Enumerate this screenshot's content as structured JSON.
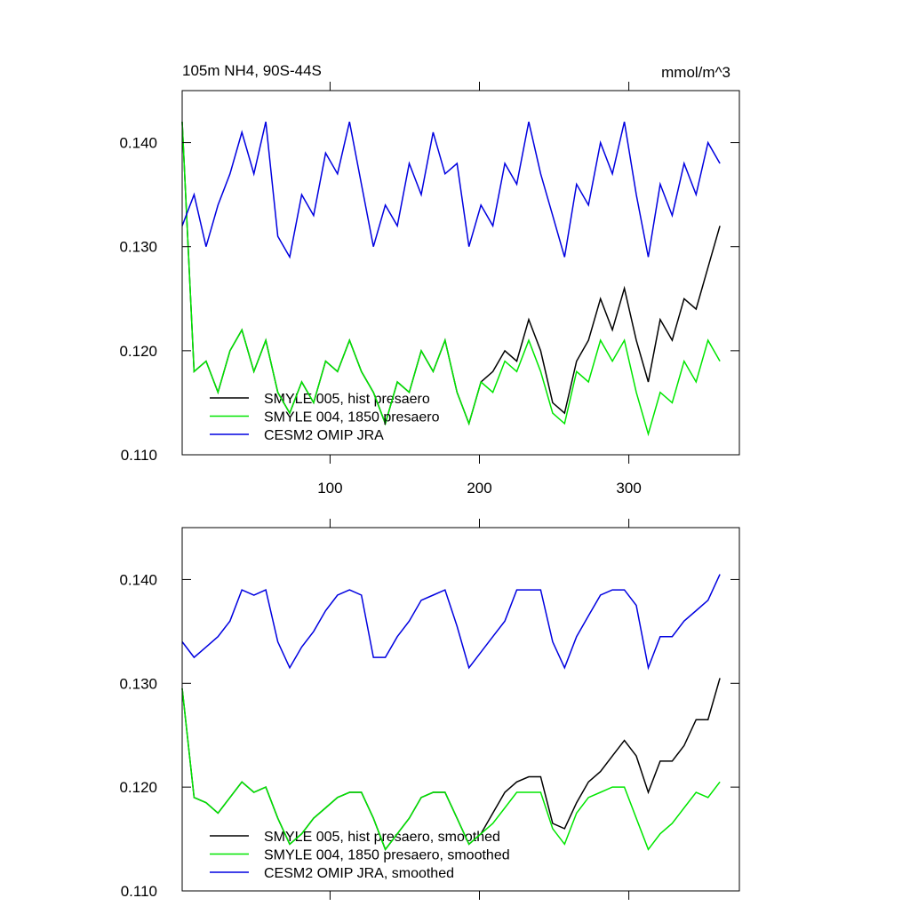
{
  "chart_data": [
    {
      "type": "line",
      "title": "105m NH4, 90S-44S",
      "units": "mmol/m^3",
      "x": [
        1,
        9,
        17,
        25,
        33,
        41,
        49,
        57,
        65,
        73,
        81,
        89,
        97,
        105,
        113,
        121,
        129,
        137,
        145,
        153,
        161,
        169,
        177,
        185,
        193,
        201,
        209,
        217,
        225,
        233,
        241,
        249,
        257,
        265,
        273,
        281,
        289,
        297,
        305,
        313,
        321,
        329,
        337,
        345,
        353,
        361
      ],
      "xlim": [
        1,
        374
      ],
      "xticks": [
        100,
        200,
        300
      ],
      "ylim": [
        0.11,
        0.145
      ],
      "yticks": [
        {
          "value": 0.11,
          "label": "0.110"
        },
        {
          "value": 0.12,
          "label": "0.120"
        },
        {
          "value": 0.13,
          "label": "0.130"
        },
        {
          "value": 0.14,
          "label": "0.140"
        }
      ],
      "series": [
        {
          "name": "SMYLE 005, hist presaero",
          "color": "#000000",
          "values": [
            0.142,
            0.118,
            0.119,
            0.116,
            0.12,
            0.122,
            0.118,
            0.121,
            0.116,
            0.114,
            0.117,
            0.115,
            0.119,
            0.118,
            0.121,
            0.118,
            0.116,
            0.113,
            0.117,
            0.116,
            0.12,
            0.118,
            0.121,
            0.116,
            0.113,
            0.117,
            0.118,
            0.12,
            0.119,
            0.123,
            0.12,
            0.115,
            0.114,
            0.119,
            0.121,
            0.125,
            0.122,
            0.126,
            0.121,
            0.117,
            0.123,
            0.121,
            0.125,
            0.124,
            0.128,
            0.132
          ]
        },
        {
          "name": "SMYLE 004, 1850 presaero",
          "color": "#00e600",
          "values": [
            0.142,
            0.118,
            0.119,
            0.116,
            0.12,
            0.122,
            0.118,
            0.121,
            0.116,
            0.114,
            0.117,
            0.115,
            0.119,
            0.118,
            0.121,
            0.118,
            0.116,
            0.113,
            0.117,
            0.116,
            0.12,
            0.118,
            0.121,
            0.116,
            0.113,
            0.117,
            0.116,
            0.119,
            0.118,
            0.121,
            0.118,
            0.114,
            0.113,
            0.118,
            0.117,
            0.121,
            0.119,
            0.121,
            0.116,
            0.112,
            0.116,
            0.115,
            0.119,
            0.117,
            0.121,
            0.119
          ]
        },
        {
          "name": "CESM2 OMIP JRA",
          "color": "#0000e0",
          "values": [
            0.132,
            0.135,
            0.13,
            0.134,
            0.137,
            0.141,
            0.137,
            0.142,
            0.131,
            0.129,
            0.135,
            0.133,
            0.139,
            0.137,
            0.142,
            0.136,
            0.13,
            0.134,
            0.132,
            0.138,
            0.135,
            0.141,
            0.137,
            0.138,
            0.13,
            0.134,
            0.132,
            0.138,
            0.136,
            0.142,
            0.137,
            0.133,
            0.129,
            0.136,
            0.134,
            0.14,
            0.137,
            0.142,
            0.135,
            0.129,
            0.136,
            0.133,
            0.138,
            0.135,
            0.14,
            0.138
          ]
        }
      ]
    },
    {
      "type": "line",
      "x": [
        1,
        9,
        17,
        25,
        33,
        41,
        49,
        57,
        65,
        73,
        81,
        89,
        97,
        105,
        113,
        121,
        129,
        137,
        145,
        153,
        161,
        169,
        177,
        185,
        193,
        201,
        209,
        217,
        225,
        233,
        241,
        249,
        257,
        265,
        273,
        281,
        289,
        297,
        305,
        313,
        321,
        329,
        337,
        345,
        353,
        361
      ],
      "xlim": [
        1,
        374
      ],
      "xticks": [
        100,
        200,
        300
      ],
      "ylim": [
        0.11,
        0.145
      ],
      "yticks": [
        {
          "value": 0.11,
          "label": "0.110"
        },
        {
          "value": 0.12,
          "label": "0.120"
        },
        {
          "value": 0.13,
          "label": "0.130"
        },
        {
          "value": 0.14,
          "label": "0.140"
        }
      ],
      "series": [
        {
          "name": "SMYLE 005, hist presaero, smoothed",
          "color": "#000000",
          "values": [
            0.1295,
            0.119,
            0.1185,
            0.1175,
            0.119,
            0.1205,
            0.1195,
            0.12,
            0.117,
            0.1145,
            0.1155,
            0.117,
            0.118,
            0.119,
            0.1195,
            0.1195,
            0.117,
            0.114,
            0.1155,
            0.117,
            0.119,
            0.1195,
            0.1195,
            0.117,
            0.1145,
            0.1155,
            0.1175,
            0.1195,
            0.1205,
            0.121,
            0.121,
            0.1165,
            0.116,
            0.1185,
            0.1205,
            0.1215,
            0.123,
            0.1245,
            0.123,
            0.1195,
            0.1225,
            0.1225,
            0.124,
            0.1265,
            0.1265,
            0.1305
          ]
        },
        {
          "name": "SMYLE 004, 1850 presaero, smoothed",
          "color": "#00e600",
          "values": [
            0.1295,
            0.119,
            0.1185,
            0.1175,
            0.119,
            0.1205,
            0.1195,
            0.12,
            0.117,
            0.1145,
            0.1155,
            0.117,
            0.118,
            0.119,
            0.1195,
            0.1195,
            0.117,
            0.114,
            0.1155,
            0.117,
            0.119,
            0.1195,
            0.1195,
            0.117,
            0.1145,
            0.1155,
            0.1165,
            0.118,
            0.1195,
            0.1195,
            0.1195,
            0.116,
            0.1145,
            0.1175,
            0.119,
            0.1195,
            0.12,
            0.12,
            0.117,
            0.114,
            0.1155,
            0.1165,
            0.118,
            0.1195,
            0.119,
            0.1205
          ]
        },
        {
          "name": "CESM2 OMIP JRA, smoothed",
          "color": "#0000e0",
          "values": [
            0.134,
            0.1325,
            0.1335,
            0.1345,
            0.136,
            0.139,
            0.1385,
            0.139,
            0.134,
            0.1315,
            0.1335,
            0.135,
            0.137,
            0.1385,
            0.139,
            0.1385,
            0.1325,
            0.1325,
            0.1345,
            0.136,
            0.138,
            0.1385,
            0.139,
            0.1355,
            0.1315,
            0.133,
            0.1345,
            0.136,
            0.139,
            0.139,
            0.139,
            0.134,
            0.1315,
            0.1345,
            0.1365,
            0.1385,
            0.139,
            0.139,
            0.1375,
            0.1315,
            0.1345,
            0.1345,
            0.136,
            0.137,
            0.138,
            0.1405
          ]
        }
      ]
    }
  ]
}
